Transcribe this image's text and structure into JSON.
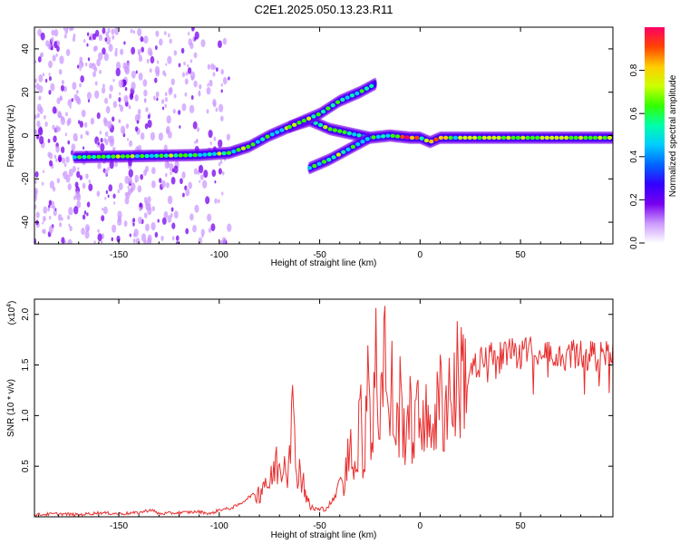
{
  "title": "C2E1.2025.050.13.23.R11",
  "chart_data": [
    {
      "type": "heatmap",
      "xlabel": "Height of straight line (km)",
      "ylabel": "Frequency (Hz)",
      "xlim": [
        -192,
        96
      ],
      "ylim": [
        -50,
        50
      ],
      "xticks": [
        -150,
        -100,
        -50,
        0,
        50
      ],
      "xtick_labels": [
        "-150",
        "-100",
        "-50",
        "0",
        "50"
      ],
      "yticks": [
        -40,
        -20,
        0,
        20,
        40
      ],
      "ytick_labels": [
        "-40",
        "-20",
        "0",
        "20",
        "40"
      ],
      "colorbar": {
        "label": "Normalized spectral amplitude",
        "range": [
          0,
          1
        ],
        "ticks": [
          0.0,
          0.2,
          0.4,
          0.6,
          0.8
        ],
        "tick_labels": [
          "0.0",
          "0.2",
          "0.4",
          "0.6",
          "0.8"
        ],
        "colors": [
          "#ffffff",
          "#cc99ff",
          "#7700ee",
          "#3300ff",
          "#0066ff",
          "#00ccff",
          "#00ffaa",
          "#33ff00",
          "#ccff00",
          "#ffcc00",
          "#ff4400",
          "#ff0066"
        ]
      },
      "features": [
        {
          "name": "scattered noise",
          "x_range": [
            -192,
            -95
          ],
          "freq_range": [
            -50,
            50
          ],
          "amplitude": 0.1
        },
        {
          "name": "main trace",
          "points": [
            [
              -172,
              -10
            ],
            [
              -140,
              -9.5
            ],
            [
              -110,
              -9
            ],
            [
              -95,
              -8
            ],
            [
              -85,
              -5
            ],
            [
              -75,
              0
            ],
            [
              -65,
              4
            ],
            [
              -55,
              7
            ],
            [
              -45,
              3
            ],
            [
              -35,
              1
            ],
            [
              -25,
              -1
            ],
            [
              -15,
              0
            ],
            [
              -5,
              -1
            ],
            [
              0,
              -1
            ],
            [
              5,
              -3
            ],
            [
              10,
              -1
            ],
            [
              20,
              -1
            ],
            [
              40,
              -1
            ],
            [
              60,
              -1
            ],
            [
              80,
              -1
            ],
            [
              96,
              -1
            ]
          ]
        },
        {
          "name": "upper branch",
          "points": [
            [
              -65,
              4
            ],
            [
              -50,
              10
            ],
            [
              -40,
              16
            ],
            [
              -30,
              20
            ],
            [
              -22,
              24
            ]
          ]
        },
        {
          "name": "lower branch",
          "points": [
            [
              -55,
              -15
            ],
            [
              -45,
              -11
            ],
            [
              -35,
              -6
            ],
            [
              -25,
              -1
            ]
          ]
        }
      ]
    },
    {
      "type": "line",
      "xlabel": "Height of straight line (km)",
      "ylabel": "SNR (10 * v/v)",
      "y_multiplier": "(x10",
      "y_multiplier_exp": "4",
      "y_multiplier_close": ")",
      "xlim": [
        -192,
        96
      ],
      "ylim": [
        0,
        2.15
      ],
      "xticks": [
        -150,
        -100,
        -50,
        0,
        50
      ],
      "xtick_labels": [
        "-150",
        "-100",
        "-50",
        "0",
        "50"
      ],
      "yticks": [
        0.5,
        1.0,
        1.5,
        2.0
      ],
      "ytick_labels": [
        "0.5",
        "1.0",
        "1.5",
        "2.0"
      ],
      "color": "#e83030",
      "series": [
        {
          "x": [
            -192,
            -180,
            -170,
            -160,
            -150,
            -140,
            -134,
            -130,
            -120,
            -110,
            -104,
            -100,
            -95,
            -90,
            -85,
            -80,
            -77,
            -75,
            -72,
            -70,
            -68,
            -66,
            -64,
            -62,
            -60,
            -58,
            -55,
            -52,
            -50,
            -48,
            -46,
            -44,
            -42,
            -40,
            -38,
            -36,
            -34,
            -32,
            -30,
            -28,
            -26,
            -24,
            -22,
            -20,
            -18,
            -16,
            -14,
            -12,
            -10,
            -8,
            -6,
            -4,
            -2,
            0,
            2,
            4,
            6,
            8,
            10,
            12,
            14,
            16,
            18,
            20,
            22,
            24,
            26,
            28,
            30,
            35,
            40,
            45,
            50,
            55,
            60,
            65,
            70,
            75,
            80,
            85,
            90,
            96
          ],
          "values": [
            0.02,
            0.03,
            0.02,
            0.04,
            0.03,
            0.04,
            0.07,
            0.03,
            0.04,
            0.05,
            0.03,
            0.07,
            0.08,
            0.12,
            0.2,
            0.25,
            0.4,
            0.3,
            0.55,
            0.5,
            0.62,
            0.55,
            1.2,
            0.55,
            0.5,
            0.35,
            0.1,
            0.08,
            0.07,
            0.08,
            0.1,
            0.15,
            0.2,
            0.4,
            0.3,
            0.6,
            0.9,
            0.4,
            1.1,
            0.5,
            1.8,
            0.7,
            1.6,
            1.0,
            2.15,
            0.9,
            1.3,
            0.8,
            1.2,
            0.9,
            1.1,
            0.9,
            1.0,
            1.0,
            1.2,
            0.8,
            1.1,
            1.0,
            1.25,
            1.1,
            1.35,
            1.2,
            1.4,
            1.45,
            1.5,
            1.55,
            1.6,
            1.62,
            1.65,
            1.7,
            1.72,
            1.74,
            1.74,
            1.75,
            1.76,
            1.75,
            1.74,
            1.73,
            1.74,
            1.72,
            1.71,
            1.72
          ]
        }
      ]
    }
  ]
}
